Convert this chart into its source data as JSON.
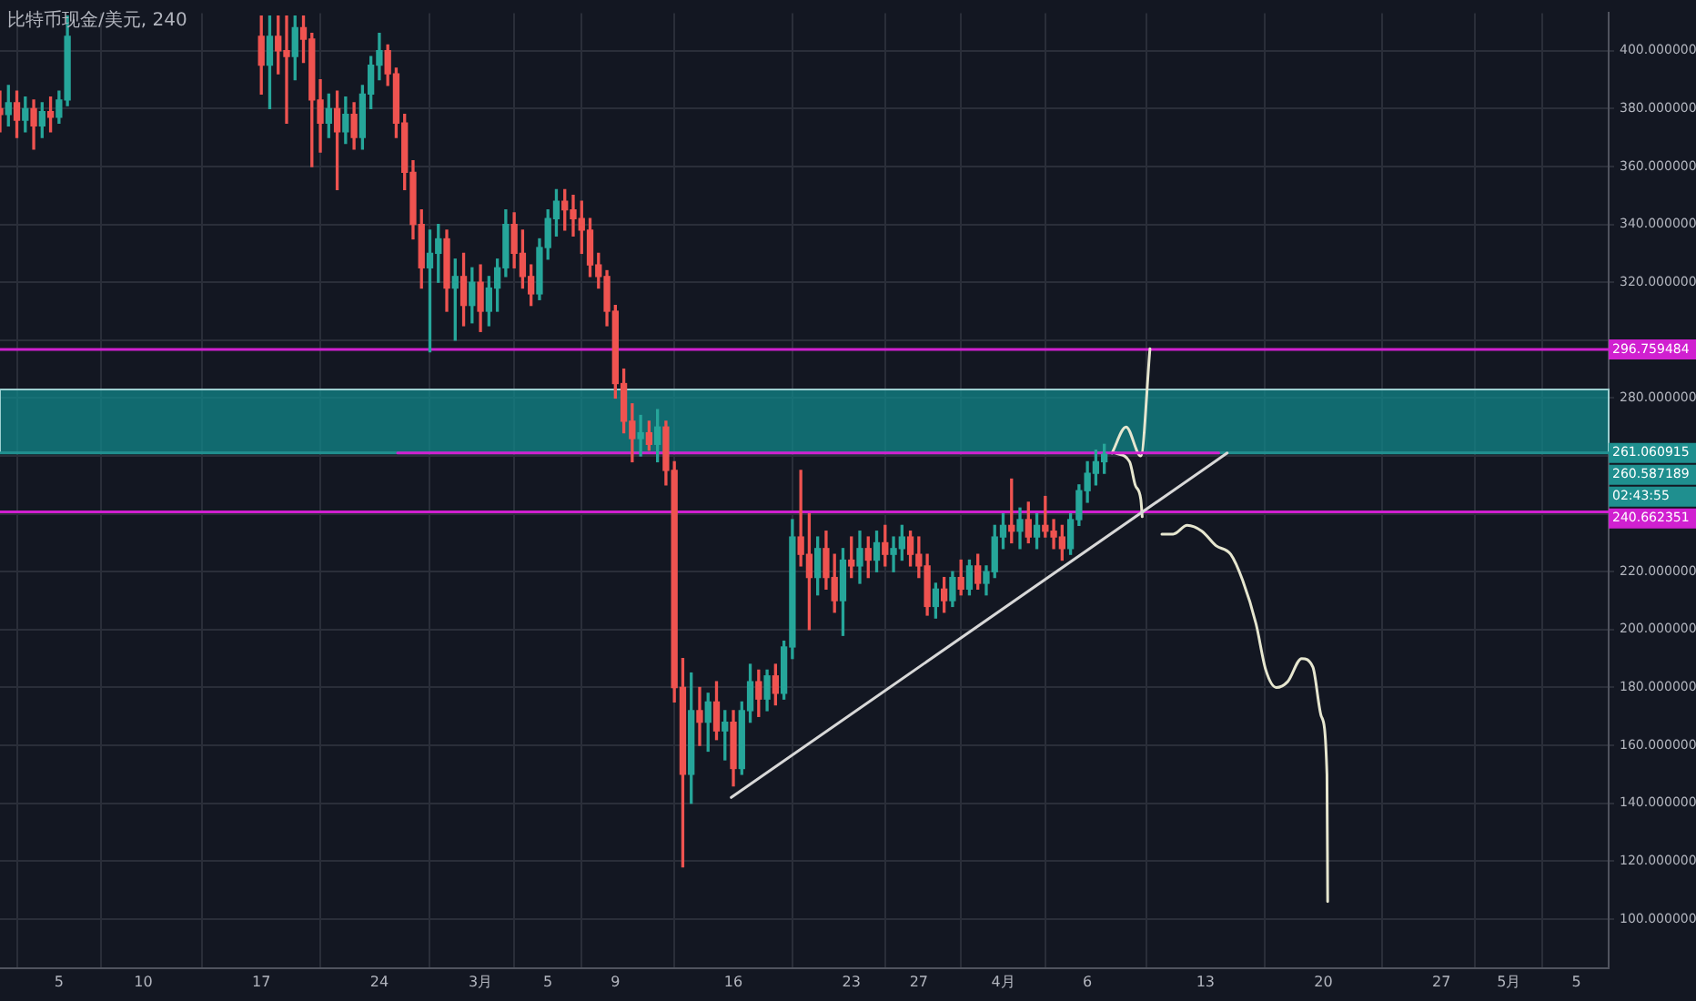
{
  "chart_data": {
    "type": "candlestick",
    "title": "比特币现金/美元, 240",
    "x": [
      "--02-01T12:00",
      "--02-02T00:00",
      "--02-02T12:00",
      "--02-03T00:00",
      "--02-03T12:00",
      "--02-04T00:00",
      "--02-04T12:00",
      "--02-05T00:00",
      "--02-05T12:00",
      "--02-17T00:00",
      "--02-17T12:00",
      "--02-18T00:00",
      "--02-18T12:00",
      "--02-19T00:00",
      "--02-19T12:00",
      "--02-20T00:00",
      "--02-20T12:00",
      "--02-21T00:00",
      "--02-21T12:00",
      "--02-22T00:00",
      "--02-22T12:00",
      "--02-23T00:00",
      "--02-23T12:00",
      "--02-24T00:00",
      "--02-24T12:00",
      "--02-25T00:00",
      "--02-25T12:00",
      "--02-26T00:00",
      "--02-26T12:00",
      "--02-27T00:00",
      "--02-27T12:00",
      "--02-28T00:00",
      "--02-28T12:00",
      "--02-29T00:00",
      "--02-29T12:00",
      "--03-01T00:00",
      "--03-01T12:00",
      "--03-02T00:00",
      "--03-02T12:00",
      "--03-03T00:00",
      "--03-03T12:00",
      "--03-04T00:00",
      "--03-04T12:00",
      "--03-05T00:00",
      "--03-05T12:00",
      "--03-06T00:00",
      "--03-06T12:00",
      "--03-07T00:00",
      "--03-07T12:00",
      "--03-08T00:00",
      "--03-08T12:00",
      "--03-09T00:00",
      "--03-09T12:00",
      "--03-10T00:00",
      "--03-10T12:00",
      "--03-11T00:00",
      "--03-11T12:00",
      "--03-12T00:00",
      "--03-12T12:00",
      "--03-13T00:00",
      "--03-13T12:00",
      "--03-14T00:00",
      "--03-14T12:00",
      "--03-15T00:00",
      "--03-15T12:00",
      "--03-16T00:00",
      "--03-16T12:00",
      "--03-17T00:00",
      "--03-17T12:00",
      "--03-18T00:00",
      "--03-18T12:00",
      "--03-19T00:00",
      "--03-19T12:00",
      "--03-20T00:00",
      "--03-20T12:00",
      "--03-21T00:00",
      "--03-21T12:00",
      "--03-22T00:00",
      "--03-22T12:00",
      "--03-23T00:00",
      "--03-23T12:00",
      "--03-24T00:00",
      "--03-24T12:00",
      "--03-25T00:00",
      "--03-25T12:00",
      "--03-26T00:00",
      "--03-26T12:00",
      "--03-27T00:00",
      "--03-27T12:00",
      "--03-28T00:00",
      "--03-28T12:00",
      "--03-29T00:00",
      "--03-29T12:00",
      "--03-30T00:00",
      "--03-30T12:00",
      "--03-31T00:00",
      "--03-31T12:00",
      "--04-01T00:00",
      "--04-01T12:00",
      "--04-02T00:00",
      "--04-02T12:00",
      "--04-03T00:00",
      "--04-03T12:00",
      "--04-04T00:00",
      "--04-04T12:00",
      "--04-05T00:00",
      "--04-05T12:00",
      "--04-06T00:00",
      "--04-06T12:00",
      "--04-07T00:00"
    ],
    "ohlc": [
      [
        380,
        386,
        372,
        378
      ],
      [
        378,
        388,
        374,
        382
      ],
      [
        382,
        386,
        370,
        376
      ],
      [
        376,
        384,
        372,
        380
      ],
      [
        380,
        383,
        366,
        374
      ],
      [
        374,
        382,
        370,
        379
      ],
      [
        379,
        384,
        372,
        377
      ],
      [
        377,
        386,
        375,
        383
      ],
      [
        383,
        412,
        381,
        405
      ],
      [
        405,
        412,
        385,
        395
      ],
      [
        395,
        412,
        380,
        405
      ],
      [
        405,
        412,
        392,
        400
      ],
      [
        400,
        412,
        375,
        398
      ],
      [
        398,
        412,
        390,
        408
      ],
      [
        408,
        412,
        396,
        404
      ],
      [
        404,
        406,
        360,
        383
      ],
      [
        383,
        390,
        365,
        375
      ],
      [
        375,
        385,
        370,
        380
      ],
      [
        380,
        386,
        352,
        372
      ],
      [
        372,
        384,
        368,
        378
      ],
      [
        378,
        382,
        366,
        370
      ],
      [
        370,
        388,
        366,
        385
      ],
      [
        385,
        398,
        380,
        395
      ],
      [
        395,
        406,
        390,
        400
      ],
      [
        400,
        402,
        388,
        392
      ],
      [
        392,
        394,
        370,
        375
      ],
      [
        375,
        378,
        352,
        358
      ],
      [
        358,
        362,
        335,
        340
      ],
      [
        340,
        345,
        318,
        325
      ],
      [
        325,
        338,
        296,
        330
      ],
      [
        330,
        340,
        320,
        335
      ],
      [
        335,
        338,
        310,
        318
      ],
      [
        318,
        328,
        300,
        322
      ],
      [
        322,
        330,
        305,
        312
      ],
      [
        312,
        325,
        306,
        320
      ],
      [
        320,
        326,
        303,
        310
      ],
      [
        310,
        322,
        305,
        318
      ],
      [
        318,
        328,
        310,
        325
      ],
      [
        325,
        345,
        322,
        340
      ],
      [
        340,
        344,
        325,
        330
      ],
      [
        330,
        338,
        318,
        322
      ],
      [
        322,
        326,
        312,
        316
      ],
      [
        316,
        335,
        314,
        332
      ],
      [
        332,
        345,
        328,
        342
      ],
      [
        342,
        352,
        336,
        348
      ],
      [
        348,
        352,
        338,
        345
      ],
      [
        345,
        350,
        336,
        342
      ],
      [
        342,
        348,
        330,
        338
      ],
      [
        338,
        342,
        322,
        326
      ],
      [
        326,
        330,
        318,
        322
      ],
      [
        322,
        324,
        305,
        310
      ],
      [
        310,
        312,
        280,
        285
      ],
      [
        285,
        290,
        268,
        272
      ],
      [
        272,
        278,
        258,
        266
      ],
      [
        266,
        274,
        260,
        268
      ],
      [
        268,
        272,
        262,
        264
      ],
      [
        264,
        276,
        258,
        270
      ],
      [
        270,
        272,
        250,
        255
      ],
      [
        255,
        258,
        175,
        180
      ],
      [
        180,
        190,
        118,
        150
      ],
      [
        150,
        185,
        140,
        172
      ],
      [
        172,
        180,
        160,
        168
      ],
      [
        168,
        178,
        158,
        175
      ],
      [
        175,
        182,
        162,
        165
      ],
      [
        165,
        172,
        155,
        168
      ],
      [
        168,
        172,
        146,
        152
      ],
      [
        152,
        175,
        150,
        172
      ],
      [
        172,
        188,
        168,
        182
      ],
      [
        182,
        186,
        170,
        176
      ],
      [
        176,
        186,
        172,
        184
      ],
      [
        184,
        188,
        174,
        178
      ],
      [
        178,
        196,
        176,
        194
      ],
      [
        194,
        238,
        190,
        232
      ],
      [
        232,
        255,
        222,
        226
      ],
      [
        226,
        240,
        200,
        218
      ],
      [
        218,
        232,
        212,
        228
      ],
      [
        228,
        234,
        214,
        218
      ],
      [
        218,
        226,
        206,
        210
      ],
      [
        210,
        228,
        198,
        224
      ],
      [
        224,
        232,
        218,
        222
      ],
      [
        222,
        234,
        216,
        228
      ],
      [
        228,
        232,
        218,
        224
      ],
      [
        224,
        234,
        220,
        230
      ],
      [
        230,
        236,
        222,
        226
      ],
      [
        226,
        232,
        220,
        228
      ],
      [
        228,
        236,
        224,
        232
      ],
      [
        232,
        234,
        222,
        226
      ],
      [
        226,
        232,
        218,
        222
      ],
      [
        222,
        226,
        205,
        208
      ],
      [
        208,
        216,
        204,
        214
      ],
      [
        214,
        218,
        206,
        210
      ],
      [
        210,
        220,
        208,
        218
      ],
      [
        218,
        224,
        212,
        214
      ],
      [
        214,
        224,
        212,
        222
      ],
      [
        222,
        226,
        214,
        216
      ],
      [
        216,
        222,
        212,
        220
      ],
      [
        220,
        236,
        218,
        232
      ],
      [
        232,
        240,
        228,
        236
      ],
      [
        236,
        252,
        230,
        234
      ],
      [
        234,
        242,
        228,
        238
      ],
      [
        238,
        244,
        230,
        232
      ],
      [
        232,
        240,
        228,
        236
      ],
      [
        236,
        246,
        232,
        234
      ],
      [
        234,
        238,
        228,
        232
      ],
      [
        232,
        236,
        224,
        228
      ],
      [
        228,
        240,
        226,
        238
      ],
      [
        238,
        250,
        236,
        248
      ],
      [
        248,
        258,
        244,
        254
      ],
      [
        254,
        262,
        250,
        258
      ],
      [
        258,
        264,
        254,
        260.587189
      ]
    ],
    "series": [
      {
        "type": "line",
        "color": "#d020d0",
        "x": [
          "--02-25T02:00",
          "--04-13T19:00"
        ],
        "values": [
          261,
          261
        ]
      },
      {
        "type": "line",
        "color": "#d8d8d8",
        "x": [
          "--03-15T21:00",
          "--04-14T07:00"
        ],
        "values": [
          142,
          261
        ]
      },
      {
        "type": "line",
        "color": "#e6e6cf",
        "x": [
          "--04-07T11:00",
          "--04-08T07:00",
          "--04-09T04:00",
          "--04-09T17:00"
        ],
        "values": [
          261,
          270,
          260,
          297
        ]
      },
      {
        "type": "line",
        "color": "#e6e6cf",
        "x": [
          "--04-07T16:00",
          "--04-08T12:00",
          "--04-08T20:00",
          "--04-09T04:00",
          "--04-09T06:00"
        ],
        "values": [
          261,
          258,
          250,
          245,
          239
        ]
      },
      {
        "type": "line",
        "color": "#e6e6cf",
        "x": [
          "--04-10T10:00",
          "--04-11T02:00",
          "--04-11T22:00",
          "--04-12T19:00",
          "--04-13T15:00",
          "--04-14T12:00",
          "--04-15T05:00",
          "--04-16T00:00",
          "--04-16T14:00",
          "--04-17T05:00",
          "--04-17T21:00",
          "--04-18T17:00",
          "--04-19T09:00",
          "--04-19T21:00",
          "--04-20T05:00",
          "--04-20T06:00"
        ],
        "values": [
          233,
          233,
          236,
          234,
          229,
          226,
          217,
          202,
          186,
          180,
          182,
          190,
          187,
          170,
          150,
          106
        ]
      }
    ],
    "ref_lines": [
      {
        "axis": "y",
        "value": 296.759484,
        "label": "296.759484",
        "color": "#d020d0"
      },
      {
        "axis": "y",
        "value": 261.060915,
        "label": "261.060915",
        "color": "#1f8f8f"
      },
      {
        "axis": "y",
        "value": 240.662351,
        "label": "240.662351",
        "color": "#d020d0"
      }
    ],
    "bands": [
      {
        "axis": "y",
        "from": 261.060915,
        "to": 283,
        "color": "#12878a"
      }
    ],
    "annotations": [
      "260.587189",
      "02:43:55"
    ],
    "xlim": [
      "--02-01T12:00",
      "--05-06T22:00"
    ],
    "xticks": [
      {
        "value": "--02-05",
        "label": "5"
      },
      {
        "value": "--02-10",
        "label": "10"
      },
      {
        "value": "--02-17",
        "label": "17"
      },
      {
        "value": "--02-24",
        "label": "24"
      },
      {
        "value": "--03-01",
        "label": "3月"
      },
      {
        "value": "--03-05",
        "label": "5"
      },
      {
        "value": "--03-09",
        "label": "9"
      },
      {
        "value": "--03-16",
        "label": "16"
      },
      {
        "value": "--03-23",
        "label": "23"
      },
      {
        "value": "--03-27",
        "label": "27"
      },
      {
        "value": "--04-01",
        "label": "4月"
      },
      {
        "value": "--04-06",
        "label": "6"
      },
      {
        "value": "--04-13",
        "label": "13"
      },
      {
        "value": "--04-20",
        "label": "20"
      },
      {
        "value": "--04-27",
        "label": "27"
      },
      {
        "value": "--05-01",
        "label": "5月"
      },
      {
        "value": "--05-05",
        "label": "5"
      }
    ],
    "ylim": [
      83,
      413
    ],
    "yticks": [
      {
        "value": 100,
        "label": "100.000000"
      },
      {
        "value": 120,
        "label": "120.000000"
      },
      {
        "value": 140,
        "label": "140.000000"
      },
      {
        "value": 160,
        "label": "160.000000"
      },
      {
        "value": 180,
        "label": "180.000000"
      },
      {
        "value": 200,
        "label": "200.000000"
      },
      {
        "value": 220,
        "label": "220.000000"
      },
      {
        "value": 240,
        "label": null
      },
      {
        "value": 260,
        "label": null
      },
      {
        "value": 280,
        "label": "280.000000"
      },
      {
        "value": 300,
        "label": null
      },
      {
        "value": 320,
        "label": "320.000000"
      },
      {
        "value": 340,
        "label": "340.000000"
      },
      {
        "value": 360,
        "label": "360.000000"
      },
      {
        "value": 380,
        "label": "380.000000"
      },
      {
        "value": 400,
        "label": "400.000000"
      }
    ],
    "grid": true,
    "legend": false,
    "marker": "none",
    "line_style": "solid"
  }
}
